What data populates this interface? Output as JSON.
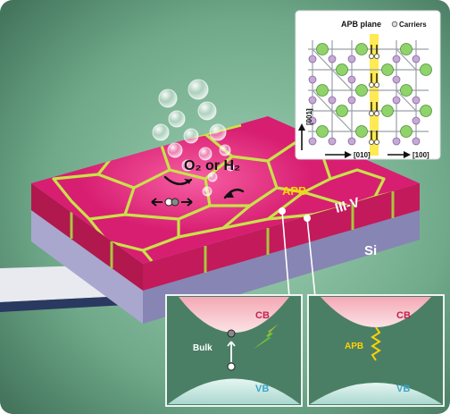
{
  "reaction": {
    "species": "O₂ or H₂"
  },
  "layers": {
    "top": "III-V",
    "bottom": "Si",
    "boundary": "APB"
  },
  "inset_crystal": {
    "plane_label": "APB plane",
    "carriers_label": "Carriers",
    "axis_vertical": "[001]",
    "axis_horizontal_a": "[010]",
    "axis_horizontal_b": "[100]"
  },
  "band_left": {
    "cb": "CB",
    "vb": "VB",
    "bulk": "Bulk"
  },
  "band_right": {
    "cb": "CB",
    "vb": "VB",
    "apb": "APB"
  },
  "colors": {
    "background": "#5f9a7b",
    "surface": "#d81e71",
    "apb_line": "#c8e24a",
    "substrate": "#8f8fb8",
    "cb_label": "#c0244f",
    "vb_label": "#3aa6c7",
    "apb_label": "#ffd200"
  }
}
